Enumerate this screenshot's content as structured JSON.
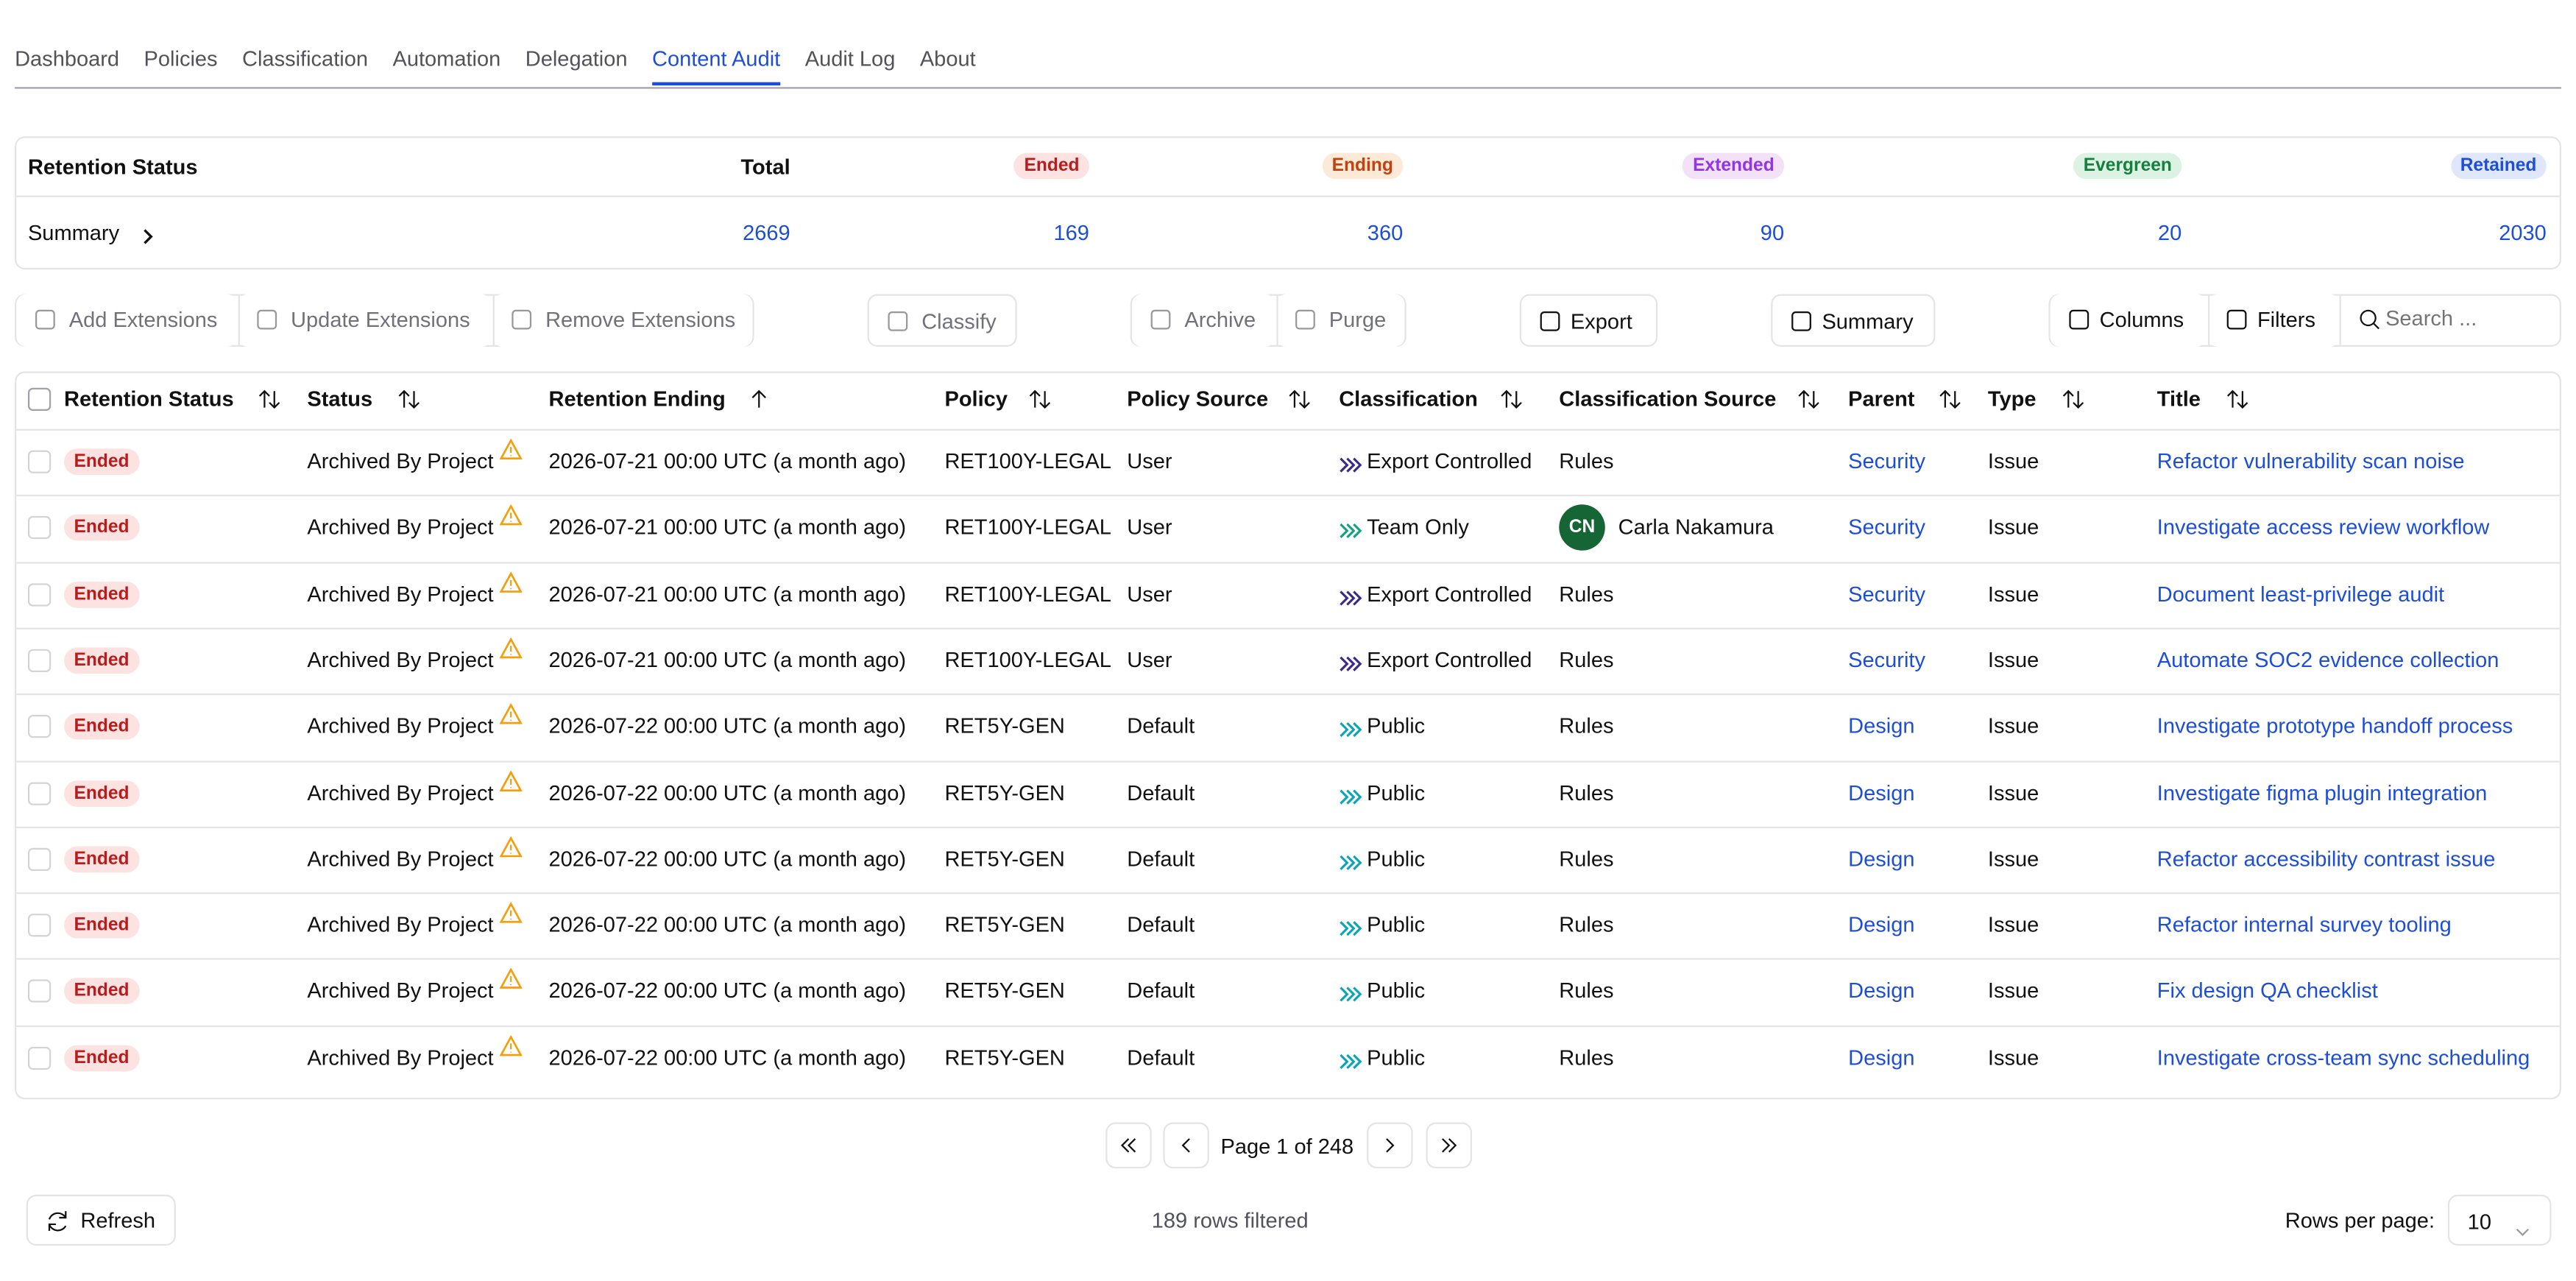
{
  "tabs": [
    "Dashboard",
    "Policies",
    "Classification",
    "Automation",
    "Delegation",
    "Content Audit",
    "Audit Log",
    "About"
  ],
  "active_tab": 5,
  "summary": {
    "headers": [
      "Retention Status",
      "Total",
      "Ended",
      "Ending",
      "Extended",
      "Evergreen",
      "Retained"
    ],
    "badge_colors": [
      [
        "#fde2e2",
        "#b91c1c"
      ],
      [
        "#fde9d7",
        "#c2410c"
      ],
      [
        "#f3e1f7",
        "#9333ea"
      ],
      [
        "#dcf3e3",
        "#15803d"
      ],
      [
        "#e0e7fb",
        "#1d4ed8"
      ]
    ],
    "row_label": "Summary",
    "values": [
      2669,
      169,
      360,
      90,
      20,
      2030
    ]
  },
  "toolbar": {
    "buttons": [
      "Add Extensions",
      "Update Extensions",
      "Remove Extensions",
      "Classify",
      "Archive",
      "Purge",
      "Export",
      "Summary",
      "Columns",
      "Filters"
    ],
    "search_placeholder": "Search ..."
  },
  "table": {
    "columns": [
      "Retention Status",
      "Status",
      "Retention Ending",
      "Policy",
      "Policy Source",
      "Classification",
      "Classification Source",
      "Parent",
      "Type",
      "Title"
    ],
    "sorted_column": 2,
    "rows": [
      {
        "class_color": "#3b2a8a",
        "cells": [
          "Ended",
          "Archived By Project",
          "2026-07-21 00:00 UTC (a month ago)",
          "RET100Y-LEGAL",
          "User",
          "Export Controlled",
          "Rules",
          "Security",
          "Issue",
          "Refactor vulnerability scan noise"
        ]
      },
      {
        "class_color": "#14a37f",
        "avatar": "CN",
        "cells": [
          "Ended",
          "Archived By Project",
          "2026-07-21 00:00 UTC (a month ago)",
          "RET100Y-LEGAL",
          "User",
          "Team Only",
          "Carla Nakamura",
          "Security",
          "Issue",
          "Investigate access review workflow"
        ]
      },
      {
        "class_color": "#3b2a8a",
        "cells": [
          "Ended",
          "Archived By Project",
          "2026-07-21 00:00 UTC (a month ago)",
          "RET100Y-LEGAL",
          "User",
          "Export Controlled",
          "Rules",
          "Security",
          "Issue",
          "Document least-privilege audit"
        ]
      },
      {
        "class_color": "#3b2a8a",
        "cells": [
          "Ended",
          "Archived By Project",
          "2026-07-21 00:00 UTC (a month ago)",
          "RET100Y-LEGAL",
          "User",
          "Export Controlled",
          "Rules",
          "Security",
          "Issue",
          "Automate SOC2 evidence collection"
        ]
      },
      {
        "class_color": "#0aa5b8",
        "cells": [
          "Ended",
          "Archived By Project",
          "2026-07-22 00:00 UTC (a month ago)",
          "RET5Y-GEN",
          "Default",
          "Public",
          "Rules",
          "Design",
          "Issue",
          "Investigate prototype handoff process"
        ]
      },
      {
        "class_color": "#0aa5b8",
        "cells": [
          "Ended",
          "Archived By Project",
          "2026-07-22 00:00 UTC (a month ago)",
          "RET5Y-GEN",
          "Default",
          "Public",
          "Rules",
          "Design",
          "Issue",
          "Investigate figma plugin integration"
        ]
      },
      {
        "class_color": "#0aa5b8",
        "cells": [
          "Ended",
          "Archived By Project",
          "2026-07-22 00:00 UTC (a month ago)",
          "RET5Y-GEN",
          "Default",
          "Public",
          "Rules",
          "Design",
          "Issue",
          "Refactor accessibility contrast issue"
        ]
      },
      {
        "class_color": "#0aa5b8",
        "cells": [
          "Ended",
          "Archived By Project",
          "2026-07-22 00:00 UTC (a month ago)",
          "RET5Y-GEN",
          "Default",
          "Public",
          "Rules",
          "Design",
          "Issue",
          "Refactor internal survey tooling"
        ]
      },
      {
        "class_color": "#0aa5b8",
        "cells": [
          "Ended",
          "Archived By Project",
          "2026-07-22 00:00 UTC (a month ago)",
          "RET5Y-GEN",
          "Default",
          "Public",
          "Rules",
          "Design",
          "Issue",
          "Fix design QA checklist"
        ]
      },
      {
        "class_color": "#0aa5b8",
        "cells": [
          "Ended",
          "Archived By Project",
          "2026-07-22 00:00 UTC (a month ago)",
          "RET5Y-GEN",
          "Default",
          "Public",
          "Rules",
          "Design",
          "Issue",
          "Investigate cross-team sync scheduling"
        ]
      }
    ]
  },
  "pagination": {
    "label": "Page 1 of 248",
    "rows_filtered": "189 rows filtered"
  },
  "refresh": "Refresh",
  "rows_per_page_label": "Rows per page:",
  "rows_per_page": 10
}
